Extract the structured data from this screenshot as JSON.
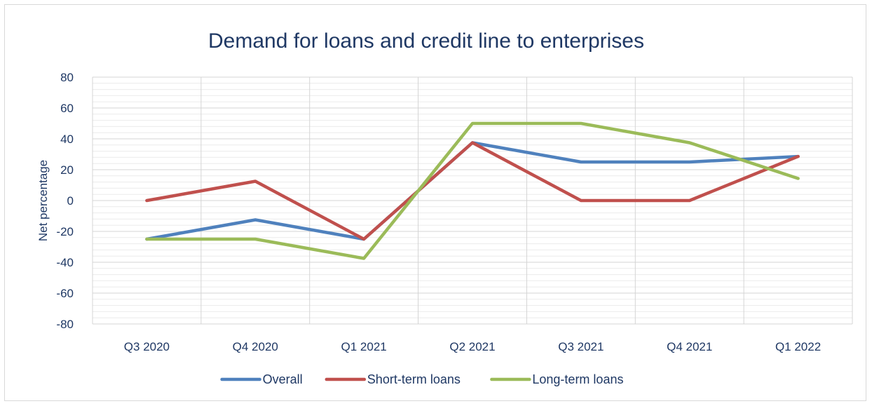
{
  "chart_data": {
    "type": "line",
    "title": "Demand for loans and credit line to enterprises",
    "xlabel": "",
    "ylabel": "Net percentage",
    "categories": [
      "Q3 2020",
      "Q4 2020",
      "Q1 2021",
      "Q2 2021",
      "Q3 2021",
      "Q4 2021",
      "Q1 2022"
    ],
    "ylim": [
      -80,
      80
    ],
    "yticks": [
      80,
      60,
      40,
      20,
      0,
      -20,
      -40,
      -60,
      -80
    ],
    "grid": true,
    "legend_position": "bottom",
    "series": [
      {
        "name": "Overall",
        "color": "#4f81bd",
        "values": [
          -25,
          -12.5,
          -25,
          37.5,
          25,
          25,
          28.6
        ]
      },
      {
        "name": "Short-term loans",
        "color": "#c0504d",
        "values": [
          0,
          12.5,
          -25,
          37.5,
          0,
          0,
          28.6
        ]
      },
      {
        "name": "Long-term loans",
        "color": "#9bbb59",
        "values": [
          -25,
          -25,
          -37.5,
          50,
          50,
          37.5,
          14.3
        ]
      }
    ]
  }
}
